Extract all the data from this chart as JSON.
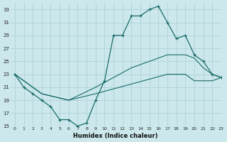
{
  "xlabel": "Humidex (Indice chaleur)",
  "bg_color": "#cce8ec",
  "line_color": "#1a6b6b",
  "grid_color": "#a8cdd4",
  "line1_x": [
    0,
    1,
    2,
    3,
    4,
    5,
    6,
    7,
    8,
    9,
    10,
    11,
    12,
    13,
    14,
    15,
    16,
    17,
    18,
    19,
    20,
    21,
    22,
    23
  ],
  "line1_y": [
    23,
    21,
    20,
    19,
    18,
    16,
    16,
    15,
    15.5,
    19,
    22,
    29,
    29,
    32,
    32,
    33,
    33.5,
    31,
    28.5,
    29,
    26,
    25,
    23,
    22.5
  ],
  "line2_x": [
    0,
    3,
    6,
    9,
    13,
    17,
    19,
    20,
    21,
    22,
    23
  ],
  "line2_y": [
    23,
    20,
    19,
    21,
    24,
    26,
    26,
    25.5,
    24,
    23,
    22.5
  ],
  "line3_x": [
    0,
    3,
    6,
    9,
    13,
    17,
    19,
    20,
    21,
    22,
    23
  ],
  "line3_y": [
    23,
    20,
    19,
    20,
    21.5,
    23,
    23,
    22,
    22,
    22,
    22.5
  ],
  "yticks": [
    15,
    17,
    19,
    21,
    23,
    25,
    27,
    29,
    31,
    33
  ],
  "xticks": [
    0,
    1,
    2,
    3,
    4,
    5,
    6,
    7,
    8,
    9,
    10,
    11,
    12,
    13,
    14,
    15,
    16,
    17,
    18,
    19,
    20,
    21,
    22,
    23
  ],
  "xlim": [
    -0.5,
    23
  ],
  "ylim": [
    15,
    34
  ]
}
